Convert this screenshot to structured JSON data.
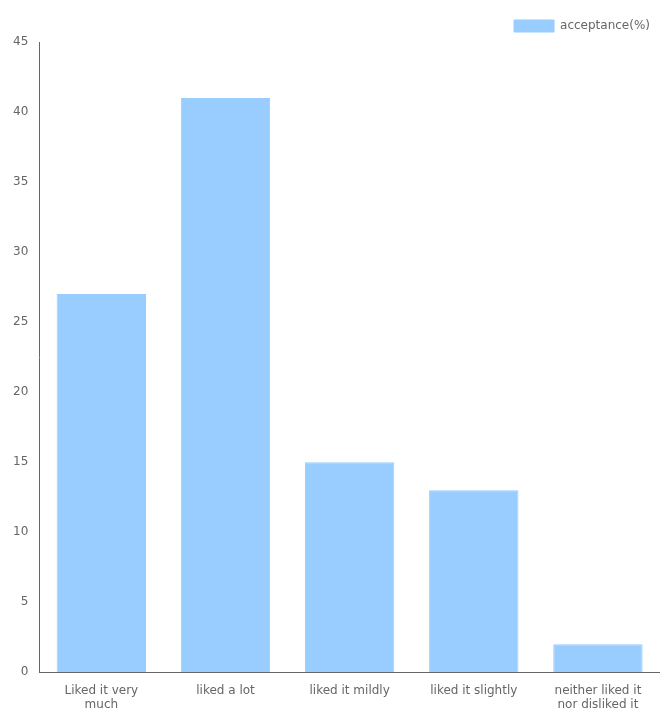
{
  "chart_data": {
    "type": "bar",
    "categories": [
      "Liked it very\nmuch",
      "liked a lot",
      "liked it mildly",
      "liked it slightly",
      "neither liked it\nnor disliked it"
    ],
    "series": [
      {
        "name": "acceptance(%)",
        "color": "#99CCFF",
        "values": [
          27,
          41,
          15,
          13,
          2
        ]
      }
    ],
    "ylim": [
      0,
      45
    ],
    "yticks": [
      0,
      5,
      10,
      15,
      20,
      25,
      30,
      35,
      40,
      45
    ],
    "grid": false,
    "legend": "upper right"
  }
}
